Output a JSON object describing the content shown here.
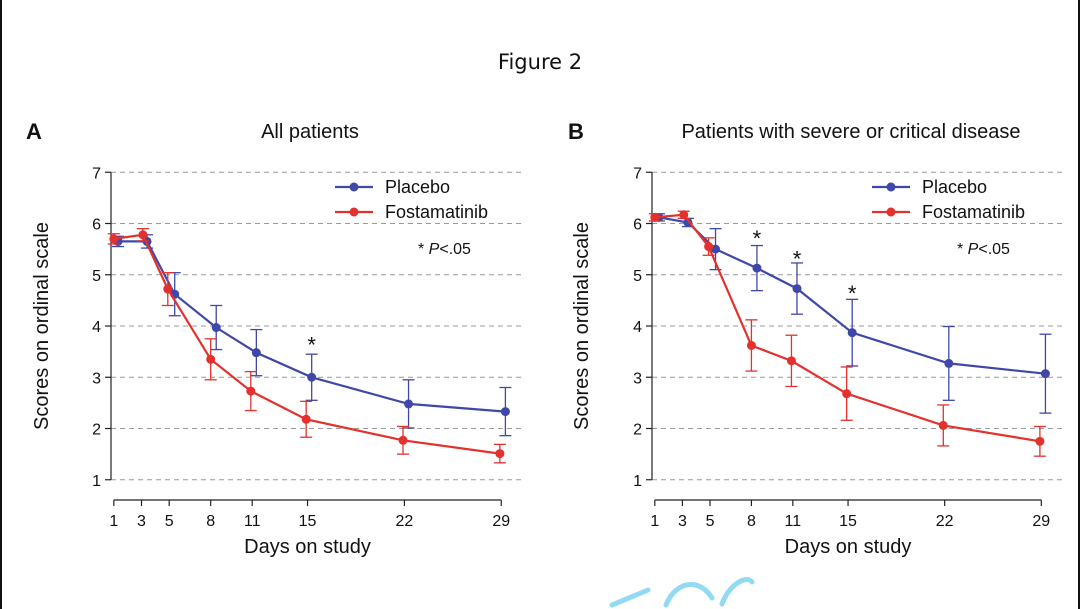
{
  "figure_title": "Figure 2",
  "colors": {
    "placebo": "#3f48a8",
    "fostamatinib": "#e3312d",
    "grid": "#9a9a9a",
    "axis": "#222222"
  },
  "chart_data": [
    {
      "panel": "A",
      "type": "line",
      "title": "All patients",
      "xlabel": "Days on study",
      "ylabel": "Scores on ordinal scale",
      "xticks": [
        1,
        3,
        5,
        8,
        11,
        15,
        22,
        29
      ],
      "yticks": [
        1,
        2,
        3,
        4,
        5,
        6,
        7
      ],
      "xlim": [
        0,
        30.5
      ],
      "ylim": [
        0.8,
        7.2
      ],
      "grid": "dashed horizontal",
      "legend": [
        "Placebo",
        "Fostamatinib"
      ],
      "legend_position": "top-right",
      "p_note_prefix": "* ",
      "p_note_var": "P",
      "p_note_rest": "<.05",
      "series": [
        {
          "name": "Placebo",
          "color": "#3f48a8",
          "x": [
            1.3,
            3.4,
            5.4,
            8.4,
            11.3,
            15.3,
            22.3,
            29.3
          ],
          "y": [
            5.65,
            5.65,
            4.62,
            3.97,
            3.48,
            3.0,
            2.48,
            2.33
          ],
          "err": [
            0.1,
            0.13,
            0.42,
            0.43,
            0.45,
            0.45,
            0.47,
            0.47
          ]
        },
        {
          "name": "Fostamatinib",
          "color": "#e3312d",
          "x": [
            1.0,
            3.1,
            4.9,
            8.0,
            10.9,
            14.9,
            21.9,
            28.9
          ],
          "y": [
            5.7,
            5.78,
            4.72,
            3.35,
            2.73,
            2.18,
            1.77,
            1.51
          ],
          "err": [
            0.1,
            0.12,
            0.32,
            0.4,
            0.38,
            0.35,
            0.27,
            0.18
          ]
        }
      ],
      "significance": [
        {
          "x": 15.3,
          "y": 3.72,
          "label": "*"
        }
      ]
    },
    {
      "panel": "B",
      "type": "line",
      "title": "Patients with severe or critical disease",
      "xlabel": "Days on study",
      "ylabel": "Scores on ordinal scale",
      "xticks": [
        1,
        3,
        5,
        8,
        11,
        15,
        22,
        29
      ],
      "yticks": [
        1,
        2,
        3,
        4,
        5,
        6,
        7
      ],
      "xlim": [
        0,
        30.5
      ],
      "ylim": [
        0.8,
        7.2
      ],
      "grid": "dashed horizontal",
      "legend": [
        "Placebo",
        "Fostamatinib"
      ],
      "legend_position": "top-right",
      "p_note_prefix": "* ",
      "p_note_var": "P",
      "p_note_rest": "<.05",
      "series": [
        {
          "name": "Placebo",
          "color": "#3f48a8",
          "x": [
            1.3,
            3.4,
            5.4,
            8.4,
            11.3,
            15.3,
            22.3,
            29.3
          ],
          "y": [
            6.12,
            6.02,
            5.5,
            5.13,
            4.73,
            3.87,
            3.27,
            3.07
          ],
          "err": [
            0.07,
            0.08,
            0.4,
            0.44,
            0.5,
            0.65,
            0.72,
            0.77
          ]
        },
        {
          "name": "Fostamatinib",
          "color": "#e3312d",
          "x": [
            1.0,
            3.1,
            4.9,
            8.0,
            10.9,
            14.9,
            21.9,
            28.9
          ],
          "y": [
            6.12,
            6.17,
            5.55,
            3.62,
            3.32,
            2.68,
            2.06,
            1.75
          ],
          "err": [
            0.07,
            0.07,
            0.17,
            0.5,
            0.5,
            0.52,
            0.4,
            0.29
          ]
        }
      ],
      "significance": [
        {
          "x": 8.4,
          "y": 5.8,
          "label": "*"
        },
        {
          "x": 11.3,
          "y": 5.4,
          "label": "*"
        },
        {
          "x": 15.3,
          "y": 4.72,
          "label": "*"
        }
      ]
    }
  ]
}
